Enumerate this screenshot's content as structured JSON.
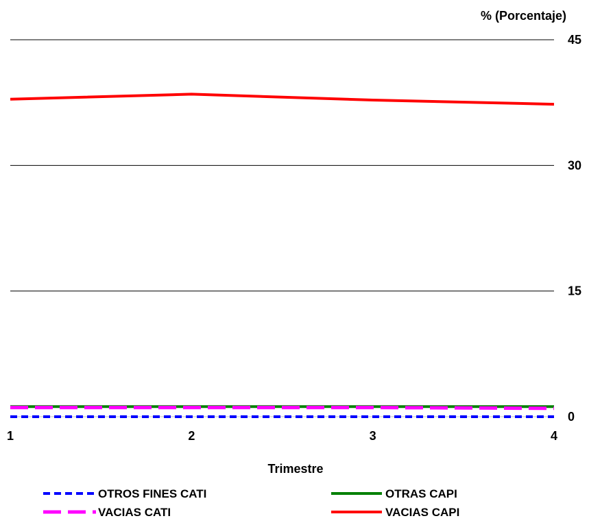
{
  "chart_data": {
    "type": "line",
    "ylabel": "% (Porcentaje)",
    "xlabel": "Trimestre",
    "x": [
      1,
      2,
      3,
      4
    ],
    "xticks": [
      "1",
      "2",
      "3",
      "4"
    ],
    "ylim": [
      0,
      45
    ],
    "yticks": [
      0,
      15,
      30,
      45
    ],
    "ytick_labels": [
      "0",
      "15",
      "30",
      "45"
    ],
    "grid": true,
    "y_axis_side": "right",
    "legend_position": "bottom",
    "series": [
      {
        "name": "OTROS FINES CATI",
        "values": [
          0.0,
          0.0,
          0.0,
          0.0
        ],
        "color": "#0000ff",
        "style": "dashed"
      },
      {
        "name": "OTRAS CAPI",
        "values": [
          1.2,
          1.2,
          1.2,
          1.2
        ],
        "color": "#008000",
        "style": "solid"
      },
      {
        "name": "VACIAS CATI",
        "values": [
          1.1,
          1.1,
          1.1,
          1.0
        ],
        "color": "#ff00ff",
        "style": "dashed"
      },
      {
        "name": "VACIAS CAPI",
        "values": [
          37.9,
          38.5,
          37.8,
          37.3
        ],
        "color": "#ff0000",
        "style": "solid"
      }
    ]
  }
}
